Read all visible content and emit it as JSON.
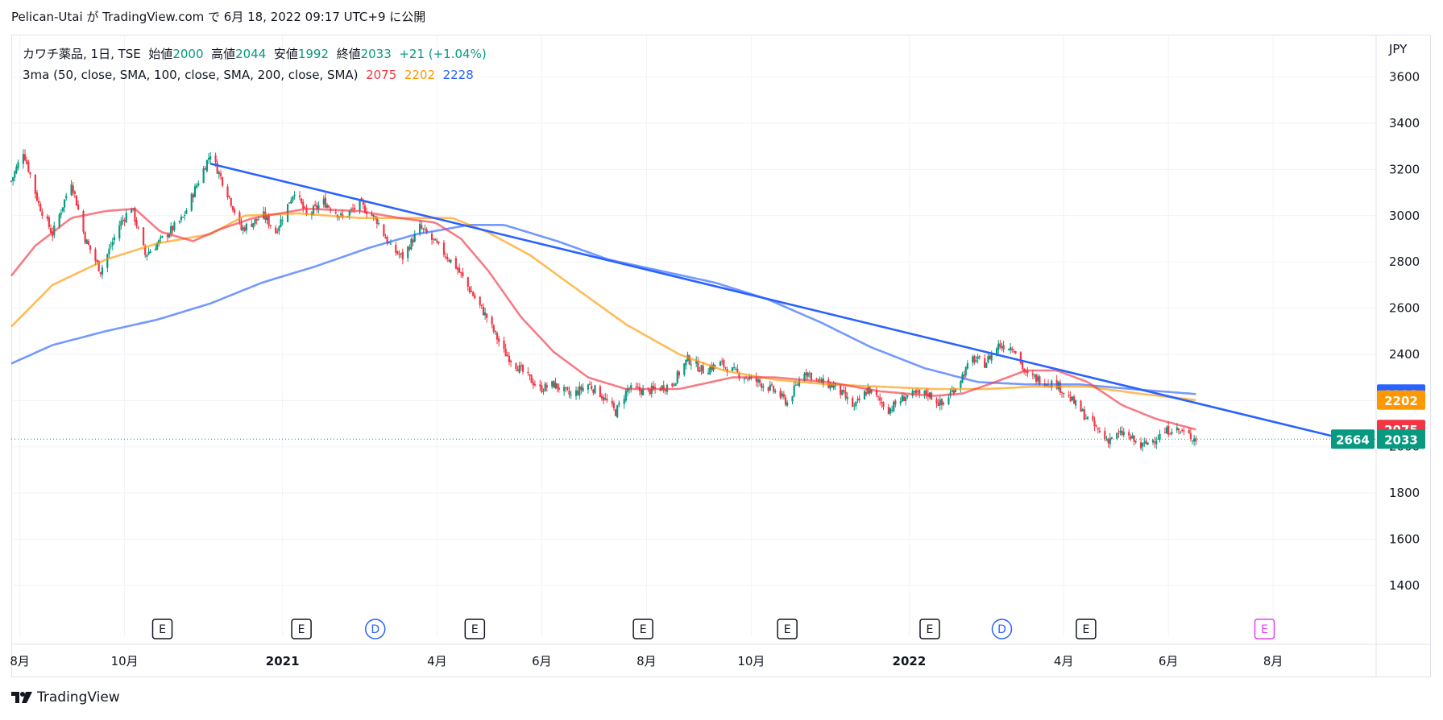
{
  "header": {
    "author": "Pelican-Utai",
    "published_text": "Pelican-Utai が TradingView.com で 6月 18, 2022 09:17 UTC+9 に公開"
  },
  "legend": {
    "symbol": "カワチ薬品, 1日, TSE",
    "open_label": "始値",
    "open": "2000",
    "high_label": "高値",
    "high": "2044",
    "low_label": "安値",
    "low": "1992",
    "close_label": "終値",
    "close": "2033",
    "change": "+21 (+1.04%)",
    "ma_label": "3ma (50, close, SMA, 100, close, SMA, 200, close, SMA)",
    "ma50": "2075",
    "ma100": "2202",
    "ma200": "2228"
  },
  "footer": {
    "brand": "TradingView"
  },
  "colors": {
    "up": "#089981",
    "down": "#f23645",
    "ma50": "#f23645",
    "ma100": "#ff9800",
    "ma200": "#2962ff",
    "trendline": "#2962ff",
    "grid": "#f0f3fa",
    "axis_text": "#131722",
    "event_e": "#131722",
    "event_d": "#2962ff",
    "event_future": "#e040fb"
  },
  "chart_data": {
    "type": "candlestick",
    "symbol": "カワチ薬品",
    "interval": "1日",
    "exchange": "TSE",
    "currency_label": "JPY",
    "ylim": [
      1180,
      3780
    ],
    "y_ticks": [
      1400,
      1600,
      1800,
      2000,
      2200,
      2400,
      2600,
      2800,
      3000,
      3200,
      3400,
      3600
    ],
    "x_range": [
      "2020-07-27",
      "2022-09-30"
    ],
    "x_ticks": [
      {
        "date": "2020-08-01",
        "label": "8月",
        "bold": false
      },
      {
        "date": "2020-10-01",
        "label": "10月",
        "bold": false
      },
      {
        "date": "2021-01-01",
        "label": "2021",
        "bold": true
      },
      {
        "date": "2021-04-01",
        "label": "4月",
        "bold": false
      },
      {
        "date": "2021-06-01",
        "label": "6月",
        "bold": false
      },
      {
        "date": "2021-08-01",
        "label": "8月",
        "bold": false
      },
      {
        "date": "2021-10-01",
        "label": "10月",
        "bold": false
      },
      {
        "date": "2022-01-01",
        "label": "2022",
        "bold": true
      },
      {
        "date": "2022-04-01",
        "label": "4月",
        "bold": false
      },
      {
        "date": "2022-06-01",
        "label": "6月",
        "bold": false
      },
      {
        "date": "2022-08-01",
        "label": "8月",
        "bold": false
      }
    ],
    "price_keypoints": [
      [
        "2020-07-27",
        3150
      ],
      [
        "2020-08-03",
        3280
      ],
      [
        "2020-08-12",
        3050
      ],
      [
        "2020-08-20",
        2920
      ],
      [
        "2020-08-31",
        3150
      ],
      [
        "2020-09-08",
        2900
      ],
      [
        "2020-09-17",
        2760
      ],
      [
        "2020-09-28",
        2960
      ],
      [
        "2020-10-05",
        3040
      ],
      [
        "2020-10-13",
        2830
      ],
      [
        "2020-10-23",
        2900
      ],
      [
        "2020-11-04",
        2990
      ],
      [
        "2020-11-13",
        3150
      ],
      [
        "2020-11-20",
        3270
      ],
      [
        "2020-12-01",
        3080
      ],
      [
        "2020-12-08",
        2940
      ],
      [
        "2020-12-21",
        3000
      ],
      [
        "2020-12-28",
        2930
      ],
      [
        "2021-01-08",
        3110
      ],
      [
        "2021-01-15",
        3000
      ],
      [
        "2021-01-25",
        3060
      ],
      [
        "2021-02-05",
        2990
      ],
      [
        "2021-02-15",
        3050
      ],
      [
        "2021-02-25",
        2980
      ],
      [
        "2021-03-05",
        2860
      ],
      [
        "2021-03-12",
        2820
      ],
      [
        "2021-03-22",
        2950
      ],
      [
        "2021-03-31",
        2880
      ],
      [
        "2021-04-12",
        2780
      ],
      [
        "2021-04-20",
        2680
      ],
      [
        "2021-04-30",
        2560
      ],
      [
        "2021-05-10",
        2410
      ],
      [
        "2021-05-20",
        2330
      ],
      [
        "2021-05-31",
        2250
      ],
      [
        "2021-06-08",
        2270
      ],
      [
        "2021-06-18",
        2220
      ],
      [
        "2021-06-28",
        2270
      ],
      [
        "2021-07-05",
        2230
      ],
      [
        "2021-07-14",
        2150
      ],
      [
        "2021-07-21",
        2250
      ],
      [
        "2021-08-02",
        2240
      ],
      [
        "2021-08-16",
        2270
      ],
      [
        "2021-08-25",
        2380
      ],
      [
        "2021-09-03",
        2330
      ],
      [
        "2021-09-13",
        2360
      ],
      [
        "2021-09-22",
        2320
      ],
      [
        "2021-10-05",
        2280
      ],
      [
        "2021-10-15",
        2240
      ],
      [
        "2021-10-22",
        2190
      ],
      [
        "2021-11-01",
        2330
      ],
      [
        "2021-11-10",
        2280
      ],
      [
        "2021-11-19",
        2260
      ],
      [
        "2021-11-30",
        2170
      ],
      [
        "2021-12-08",
        2250
      ],
      [
        "2021-12-20",
        2160
      ],
      [
        "2021-12-30",
        2220
      ],
      [
        "2022-01-12",
        2230
      ],
      [
        "2022-01-20",
        2180
      ],
      [
        "2022-01-28",
        2260
      ],
      [
        "2022-02-07",
        2380
      ],
      [
        "2022-02-14",
        2360
      ],
      [
        "2022-02-22",
        2440
      ],
      [
        "2022-03-03",
        2430
      ],
      [
        "2022-03-10",
        2310
      ],
      [
        "2022-03-18",
        2290
      ],
      [
        "2022-03-28",
        2270
      ],
      [
        "2022-04-07",
        2190
      ],
      [
        "2022-04-15",
        2120
      ],
      [
        "2022-04-26",
        2030
      ],
      [
        "2022-05-06",
        2060
      ],
      [
        "2022-05-16",
        2000
      ],
      [
        "2022-05-25",
        2040
      ],
      [
        "2022-06-03",
        2080
      ],
      [
        "2022-06-10",
        2060
      ],
      [
        "2022-06-17",
        2033
      ]
    ],
    "ma50_keypoints": [
      [
        "2020-07-27",
        2740
      ],
      [
        "2020-08-10",
        2870
      ],
      [
        "2020-08-31",
        2990
      ],
      [
        "2020-09-20",
        3020
      ],
      [
        "2020-10-07",
        3030
      ],
      [
        "2020-10-22",
        2930
      ],
      [
        "2020-11-10",
        2890
      ],
      [
        "2020-11-25",
        2940
      ],
      [
        "2020-12-15",
        2990
      ],
      [
        "2021-01-15",
        3030
      ],
      [
        "2021-02-15",
        3020
      ],
      [
        "2021-03-10",
        2990
      ],
      [
        "2021-03-31",
        2970
      ],
      [
        "2021-04-15",
        2900
      ],
      [
        "2021-05-01",
        2760
      ],
      [
        "2021-05-20",
        2560
      ],
      [
        "2021-06-08",
        2410
      ],
      [
        "2021-06-28",
        2300
      ],
      [
        "2021-07-20",
        2250
      ],
      [
        "2021-08-20",
        2250
      ],
      [
        "2021-09-20",
        2300
      ],
      [
        "2021-10-15",
        2300
      ],
      [
        "2021-11-15",
        2280
      ],
      [
        "2021-12-15",
        2240
      ],
      [
        "2022-01-15",
        2220
      ],
      [
        "2022-02-01",
        2230
      ],
      [
        "2022-02-20",
        2280
      ],
      [
        "2022-03-10",
        2330
      ],
      [
        "2022-03-28",
        2330
      ],
      [
        "2022-04-15",
        2280
      ],
      [
        "2022-05-05",
        2180
      ],
      [
        "2022-05-25",
        2120
      ],
      [
        "2022-06-17",
        2075
      ]
    ],
    "ma100_keypoints": [
      [
        "2020-07-27",
        2520
      ],
      [
        "2020-08-20",
        2700
      ],
      [
        "2020-09-20",
        2810
      ],
      [
        "2020-10-20",
        2880
      ],
      [
        "2020-11-20",
        2920
      ],
      [
        "2020-12-10",
        3000
      ],
      [
        "2021-01-10",
        3010
      ],
      [
        "2021-02-15",
        2990
      ],
      [
        "2021-03-20",
        2990
      ],
      [
        "2021-04-10",
        2990
      ],
      [
        "2021-04-30",
        2930
      ],
      [
        "2021-05-25",
        2830
      ],
      [
        "2021-06-20",
        2690
      ],
      [
        "2021-07-20",
        2530
      ],
      [
        "2021-08-20",
        2400
      ],
      [
        "2021-09-15",
        2330
      ],
      [
        "2021-10-15",
        2290
      ],
      [
        "2021-11-15",
        2270
      ],
      [
        "2021-12-15",
        2260
      ],
      [
        "2022-01-15",
        2250
      ],
      [
        "2022-02-15",
        2250
      ],
      [
        "2022-03-15",
        2260
      ],
      [
        "2022-04-15",
        2260
      ],
      [
        "2022-05-15",
        2230
      ],
      [
        "2022-06-17",
        2202
      ]
    ],
    "ma200_keypoints": [
      [
        "2020-07-27",
        2360
      ],
      [
        "2020-08-20",
        2440
      ],
      [
        "2020-09-20",
        2500
      ],
      [
        "2020-10-20",
        2550
      ],
      [
        "2020-11-20",
        2620
      ],
      [
        "2020-12-20",
        2710
      ],
      [
        "2021-01-20",
        2780
      ],
      [
        "2021-02-20",
        2860
      ],
      [
        "2021-03-20",
        2920
      ],
      [
        "2021-04-20",
        2960
      ],
      [
        "2021-05-10",
        2960
      ],
      [
        "2021-06-10",
        2890
      ],
      [
        "2021-07-10",
        2810
      ],
      [
        "2021-08-10",
        2760
      ],
      [
        "2021-09-10",
        2710
      ],
      [
        "2021-10-10",
        2640
      ],
      [
        "2021-11-10",
        2540
      ],
      [
        "2021-12-10",
        2430
      ],
      [
        "2022-01-10",
        2340
      ],
      [
        "2022-02-10",
        2280
      ],
      [
        "2022-03-10",
        2270
      ],
      [
        "2022-04-10",
        2270
      ],
      [
        "2022-05-10",
        2250
      ],
      [
        "2022-06-17",
        2228
      ]
    ],
    "trendline": {
      "start": [
        "2020-11-20",
        3225
      ],
      "end": [
        "2022-09-19",
        2020
      ]
    },
    "last_close": 2033,
    "ma_values": {
      "ma50": 2075,
      "ma100": 2202,
      "ma200": 2228
    },
    "trendline_label": "2664",
    "events": [
      {
        "date": "2020-10-23",
        "label": "E",
        "kind": "earnings"
      },
      {
        "date": "2021-01-12",
        "label": "E",
        "kind": "earnings"
      },
      {
        "date": "2021-02-24",
        "label": "D",
        "kind": "dividend"
      },
      {
        "date": "2021-04-23",
        "label": "E",
        "kind": "earnings"
      },
      {
        "date": "2021-07-30",
        "label": "E",
        "kind": "earnings"
      },
      {
        "date": "2021-10-22",
        "label": "E",
        "kind": "earnings"
      },
      {
        "date": "2022-01-13",
        "label": "E",
        "kind": "earnings"
      },
      {
        "date": "2022-02-24",
        "label": "D",
        "kind": "dividend"
      },
      {
        "date": "2022-04-14",
        "label": "E",
        "kind": "earnings"
      },
      {
        "date": "2022-07-27",
        "label": "E",
        "kind": "earnings_future"
      }
    ]
  }
}
